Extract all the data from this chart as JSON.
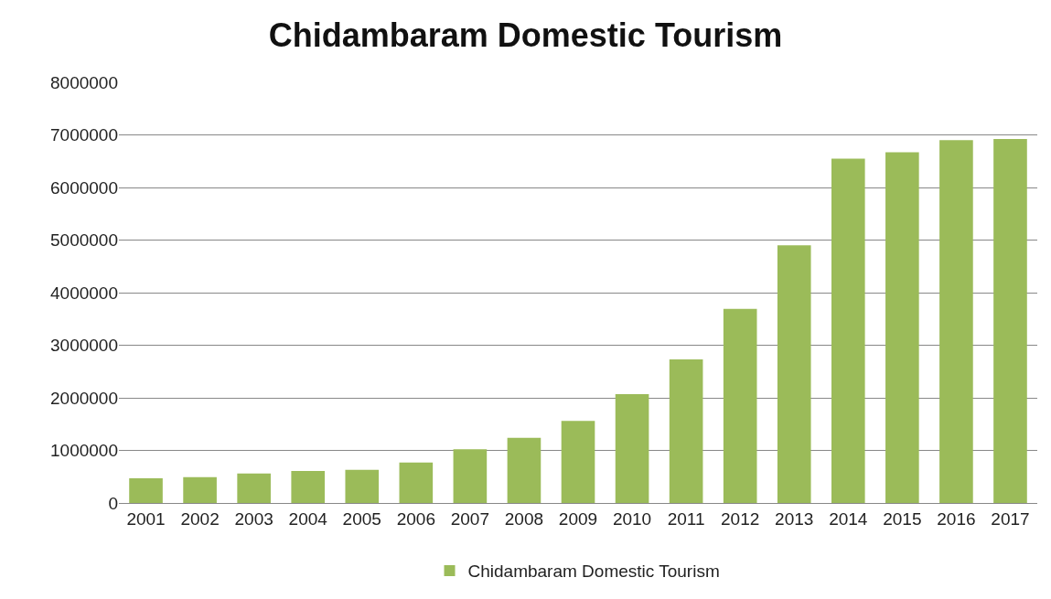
{
  "chart_data": {
    "type": "bar",
    "title": "Chidambaram Domestic Tourism",
    "categories": [
      "2001",
      "2002",
      "2003",
      "2004",
      "2005",
      "2006",
      "2007",
      "2008",
      "2009",
      "2010",
      "2011",
      "2012",
      "2013",
      "2014",
      "2015",
      "2016",
      "2017"
    ],
    "series": [
      {
        "name": "Chidambaram Domestic Tourism",
        "color": "#9bbb59",
        "values": [
          470000,
          490000,
          560000,
          610000,
          630000,
          770000,
          1020000,
          1240000,
          1560000,
          2070000,
          2730000,
          3690000,
          4900000,
          6550000,
          6670000,
          6900000,
          6920000
        ]
      }
    ],
    "ylim": [
      0,
      8000000
    ],
    "yticks": [
      0,
      1000000,
      2000000,
      3000000,
      4000000,
      5000000,
      6000000,
      7000000,
      8000000
    ],
    "grid": "y",
    "legend": "bottom"
  }
}
